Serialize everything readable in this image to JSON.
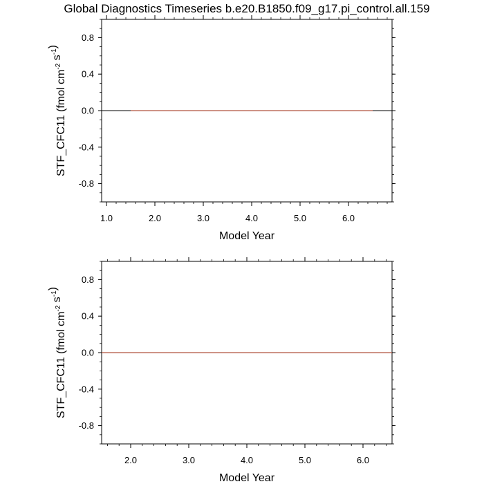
{
  "title": "Global Diagnostics Timeseries b.e20.B1850.f09_g17.pi_control.all.159",
  "colors": {
    "series": "#b0533f",
    "zero_line": "#000000",
    "frame": "#000000"
  },
  "chart_data": [
    {
      "type": "line",
      "xlabel": "Model Year",
      "ylabel": {
        "prefix": "STF_CFC11 (fmol cm",
        "exp1": "-2",
        "middle": " s",
        "exp2": "-1",
        "suffix": ")"
      },
      "xlim": [
        0.9,
        6.9
      ],
      "ylim": [
        -1.0,
        1.0
      ],
      "x_ticks": [
        1.0,
        2.0,
        3.0,
        4.0,
        5.0,
        6.0
      ],
      "x_tick_labels": [
        "1.0",
        "2.0",
        "3.0",
        "4.0",
        "5.0",
        "6.0"
      ],
      "y_ticks": [
        0.8,
        0.4,
        0.0,
        -0.4,
        -0.8
      ],
      "y_tick_labels": [
        "0.8",
        "0.4",
        "0.0",
        "-0.4",
        "-0.8"
      ],
      "zero_line": true,
      "series": [
        {
          "x": [
            1.5,
            2.5,
            3.5,
            4.5,
            5.5,
            6.5
          ],
          "y": [
            0.0,
            0.0,
            0.0,
            0.0,
            0.0,
            0.0
          ]
        }
      ]
    },
    {
      "type": "line",
      "xlabel": "Model Year",
      "ylabel": {
        "prefix": "STF_CFC11 (fmol cm",
        "exp1": "-2",
        "middle": " s",
        "exp2": "-1",
        "suffix": ")"
      },
      "xlim": [
        1.5,
        6.5
      ],
      "ylim": [
        -1.0,
        1.0
      ],
      "x_ticks": [
        2.0,
        3.0,
        4.0,
        5.0,
        6.0
      ],
      "x_tick_labels": [
        "2.0",
        "3.0",
        "4.0",
        "5.0",
        "6.0"
      ],
      "y_ticks": [
        0.8,
        0.4,
        0.0,
        -0.4,
        -0.8
      ],
      "y_tick_labels": [
        "0.8",
        "0.4",
        "0.0",
        "-0.4",
        "-0.8"
      ],
      "zero_line": true,
      "series": [
        {
          "x": [
            1.5,
            2.5,
            3.5,
            4.5,
            5.5,
            6.5
          ],
          "y": [
            0.0,
            0.0,
            0.0,
            0.0,
            0.0,
            0.0
          ]
        }
      ]
    }
  ]
}
